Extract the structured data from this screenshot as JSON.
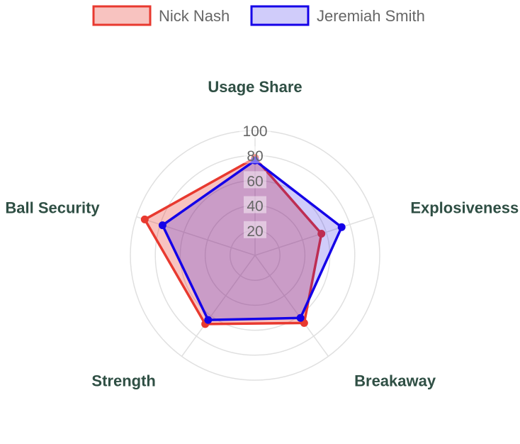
{
  "chart_data": {
    "type": "radar",
    "axes": [
      "Usage Share",
      "Explosiveness",
      "Breakaway",
      "Strength",
      "Ball Security"
    ],
    "r_ticks": [
      "20",
      "40",
      "60",
      "80",
      "100"
    ],
    "r_range": [
      0,
      100
    ],
    "grid": true,
    "legend_position": "top",
    "series": [
      {
        "name": "Nick Nash",
        "values": [
          78,
          56,
          67,
          68,
          93
        ],
        "color": "#e8392f",
        "fill": "rgba(232,57,47,0.30)"
      },
      {
        "name": "Jeremiah Smith",
        "values": [
          76,
          73,
          62,
          64,
          78
        ],
        "color": "#1400e8",
        "fill": "rgba(20,0,232,0.20)"
      }
    ]
  }
}
